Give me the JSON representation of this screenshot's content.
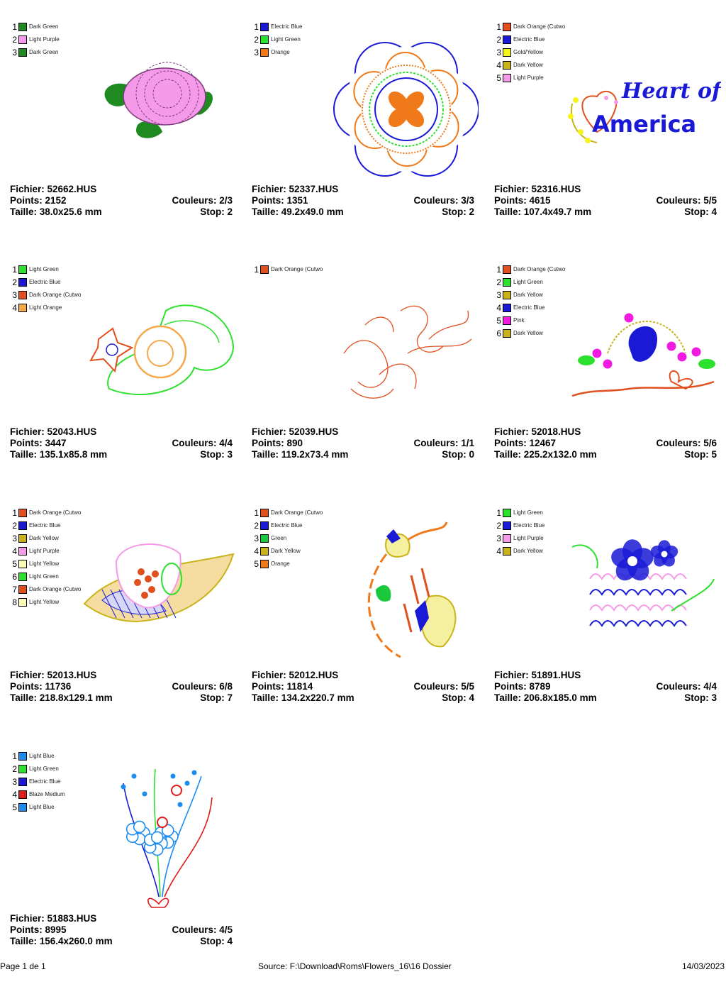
{
  "designs": [
    {
      "threads": [
        {
          "num": "1",
          "color": "#1f8a1f",
          "name": "Dark Green"
        },
        {
          "num": "2",
          "color": "#f59ae8",
          "name": "Light Purple"
        },
        {
          "num": "3",
          "color": "#1f8a1f",
          "name": "Dark Green"
        }
      ],
      "art": "rose",
      "file": "Fichier: 52662.HUS",
      "points": "Points: 2152",
      "colors": "Couleurs: 2/3",
      "size": "Taille: 38.0x25.6 mm",
      "stop": "Stop: 2"
    },
    {
      "threads": [
        {
          "num": "1",
          "color": "#1a1ad6",
          "name": "Electric Blue"
        },
        {
          "num": "2",
          "color": "#2ee02e",
          "name": "Light Green"
        },
        {
          "num": "3",
          "color": "#f07a1a",
          "name": "Orange"
        }
      ],
      "art": "ringflower",
      "file": "Fichier: 52337.HUS",
      "points": "Points: 1351",
      "colors": "Couleurs: 3/3",
      "size": "Taille: 49.2x49.0 mm",
      "stop": "Stop: 2"
    },
    {
      "threads": [
        {
          "num": "1",
          "color": "#e0501e",
          "name": "Dark Orange (Cutwo"
        },
        {
          "num": "2",
          "color": "#1a1ad6",
          "name": "Electric Blue"
        },
        {
          "num": "3",
          "color": "#f5f51a",
          "name": "Gold/Yellow"
        },
        {
          "num": "4",
          "color": "#c8b41a",
          "name": "Dark Yellow"
        },
        {
          "num": "5",
          "color": "#f59ae8",
          "name": "Light Purple"
        }
      ],
      "art": "heart",
      "art_text_line1": "Heart of",
      "art_text_line2": "America",
      "file": "Fichier: 52316.HUS",
      "points": "Points: 4615",
      "colors": "Couleurs: 5/5",
      "size": "Taille: 107.4x49.7 mm",
      "stop": "Stop: 4"
    },
    {
      "threads": [
        {
          "num": "1",
          "color": "#2ee02e",
          "name": "Light Green"
        },
        {
          "num": "2",
          "color": "#1a1ad6",
          "name": "Electric Blue"
        },
        {
          "num": "3",
          "color": "#e0501e",
          "name": "Dark Orange (Cutwo"
        },
        {
          "num": "4",
          "color": "#f5a84a",
          "name": "Light Orange"
        }
      ],
      "art": "leafflower",
      "file": "Fichier: 52043.HUS",
      "points": "Points: 3447",
      "colors": "Couleurs: 4/4",
      "size": "Taille: 135.1x85.8 mm",
      "stop": "Stop: 3"
    },
    {
      "threads": [
        {
          "num": "1",
          "color": "#e0501e",
          "name": "Dark Orange (Cutwo"
        }
      ],
      "art": "scroll",
      "file": "Fichier: 52039.HUS",
      "points": "Points: 890",
      "colors": "Couleurs: 1/1",
      "size": "Taille: 119.2x73.4 mm",
      "stop": "Stop: 0"
    },
    {
      "threads": [
        {
          "num": "1",
          "color": "#e0501e",
          "name": "Dark Orange (Cutwo"
        },
        {
          "num": "2",
          "color": "#2ee02e",
          "name": "Light Green"
        },
        {
          "num": "3",
          "color": "#c8b41a",
          "name": "Dark Yellow"
        },
        {
          "num": "4",
          "color": "#1a1ad6",
          "name": "Electric Blue"
        },
        {
          "num": "5",
          "color": "#f01ae0",
          "name": "Pink"
        },
        {
          "num": "6",
          "color": "#c8b41a",
          "name": "Dark Yellow"
        }
      ],
      "art": "bowfloral",
      "file": "Fichier: 52018.HUS",
      "points": "Points: 12467",
      "colors": "Couleurs: 5/6",
      "size": "Taille: 225.2x132.0 mm",
      "stop": "Stop: 5"
    },
    {
      "threads": [
        {
          "num": "1",
          "color": "#e0501e",
          "name": "Dark Orange (Cutwo"
        },
        {
          "num": "2",
          "color": "#1a1ad6",
          "name": "Electric Blue"
        },
        {
          "num": "3",
          "color": "#c8b41a",
          "name": "Dark Yellow"
        },
        {
          "num": "4",
          "color": "#f59ae8",
          "name": "Light Purple"
        },
        {
          "num": "5",
          "color": "#fafab4",
          "name": "Light Yellow"
        },
        {
          "num": "6",
          "color": "#2ee02e",
          "name": "Light Green"
        },
        {
          "num": "7",
          "color": "#e0501e",
          "name": "Dark Orange (Cutwo"
        },
        {
          "num": "8",
          "color": "#fafab4",
          "name": "Light Yellow"
        }
      ],
      "art": "lacefan",
      "file": "Fichier: 52013.HUS",
      "points": "Points: 11736",
      "colors": "Couleurs: 6/8",
      "size": "Taille: 218.8x129.1 mm",
      "stop": "Stop: 7"
    },
    {
      "threads": [
        {
          "num": "1",
          "color": "#e0501e",
          "name": "Dark Orange (Cutwo"
        },
        {
          "num": "2",
          "color": "#1a1ad6",
          "name": "Electric Blue"
        },
        {
          "num": "3",
          "color": "#1ac83c",
          "name": "Green"
        },
        {
          "num": "4",
          "color": "#c8b41a",
          "name": "Dark Yellow"
        },
        {
          "num": "5",
          "color": "#f07a1a",
          "name": "Orange"
        }
      ],
      "art": "arcflower",
      "file": "Fichier: 52012.HUS",
      "points": "Points: 11814",
      "colors": "Couleurs: 5/5",
      "size": "Taille: 134.2x220.7 mm",
      "stop": "Stop: 4"
    },
    {
      "threads": [
        {
          "num": "1",
          "color": "#2ee02e",
          "name": "Light Green"
        },
        {
          "num": "2",
          "color": "#1a1ad6",
          "name": "Electric Blue"
        },
        {
          "num": "3",
          "color": "#f59ae8",
          "name": "Light Purple"
        },
        {
          "num": "4",
          "color": "#c8b41a",
          "name": "Dark Yellow"
        }
      ],
      "art": "pansy",
      "file": "Fichier: 51891.HUS",
      "points": "Points: 8789",
      "colors": "Couleurs: 4/4",
      "size": "Taille: 206.8x185.0 mm",
      "stop": "Stop: 3"
    },
    {
      "threads": [
        {
          "num": "1",
          "color": "#1a8cf0",
          "name": "Light Blue"
        },
        {
          "num": "2",
          "color": "#2ee02e",
          "name": "Light Green"
        },
        {
          "num": "3",
          "color": "#1a1ad6",
          "name": "Electric Blue"
        },
        {
          "num": "4",
          "color": "#e01a1a",
          "name": "Blaze Medium"
        },
        {
          "num": "5",
          "color": "#1a8cf0",
          "name": "Light Blue"
        }
      ],
      "art": "bouquet",
      "file": "Fichier: 51883.HUS",
      "points": "Points: 8995",
      "colors": "Couleurs: 4/5",
      "size": "Taille: 156.4x260.0 mm",
      "stop": "Stop: 4"
    }
  ],
  "footer": {
    "page": "Page 1 de 1",
    "source": "Source: F:\\Download\\Roms\\Flowers_16\\16 Dossier",
    "date": "14/03/2023"
  }
}
